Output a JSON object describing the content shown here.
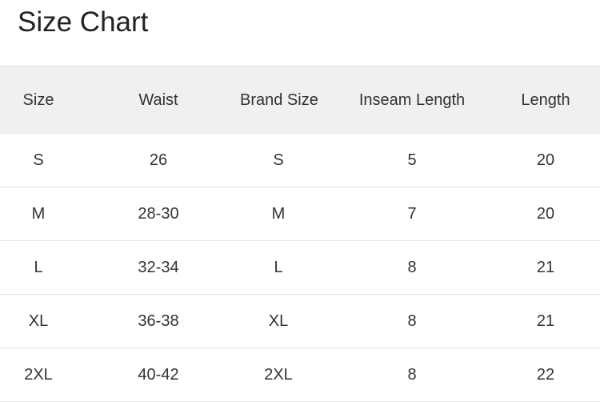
{
  "title": "Size Chart",
  "columns": [
    "Size",
    "Waist",
    "Brand Size",
    "Inseam Length",
    "Length"
  ],
  "rows": [
    [
      "S",
      "26",
      "S",
      "5",
      "20"
    ],
    [
      "M",
      "28-30",
      "M",
      "7",
      "20"
    ],
    [
      "L",
      "32-34",
      "L",
      "8",
      "21"
    ],
    [
      "XL",
      "36-38",
      "XL",
      "8",
      "21"
    ],
    [
      "2XL",
      "40-42",
      "2XL",
      "8",
      "22"
    ]
  ]
}
